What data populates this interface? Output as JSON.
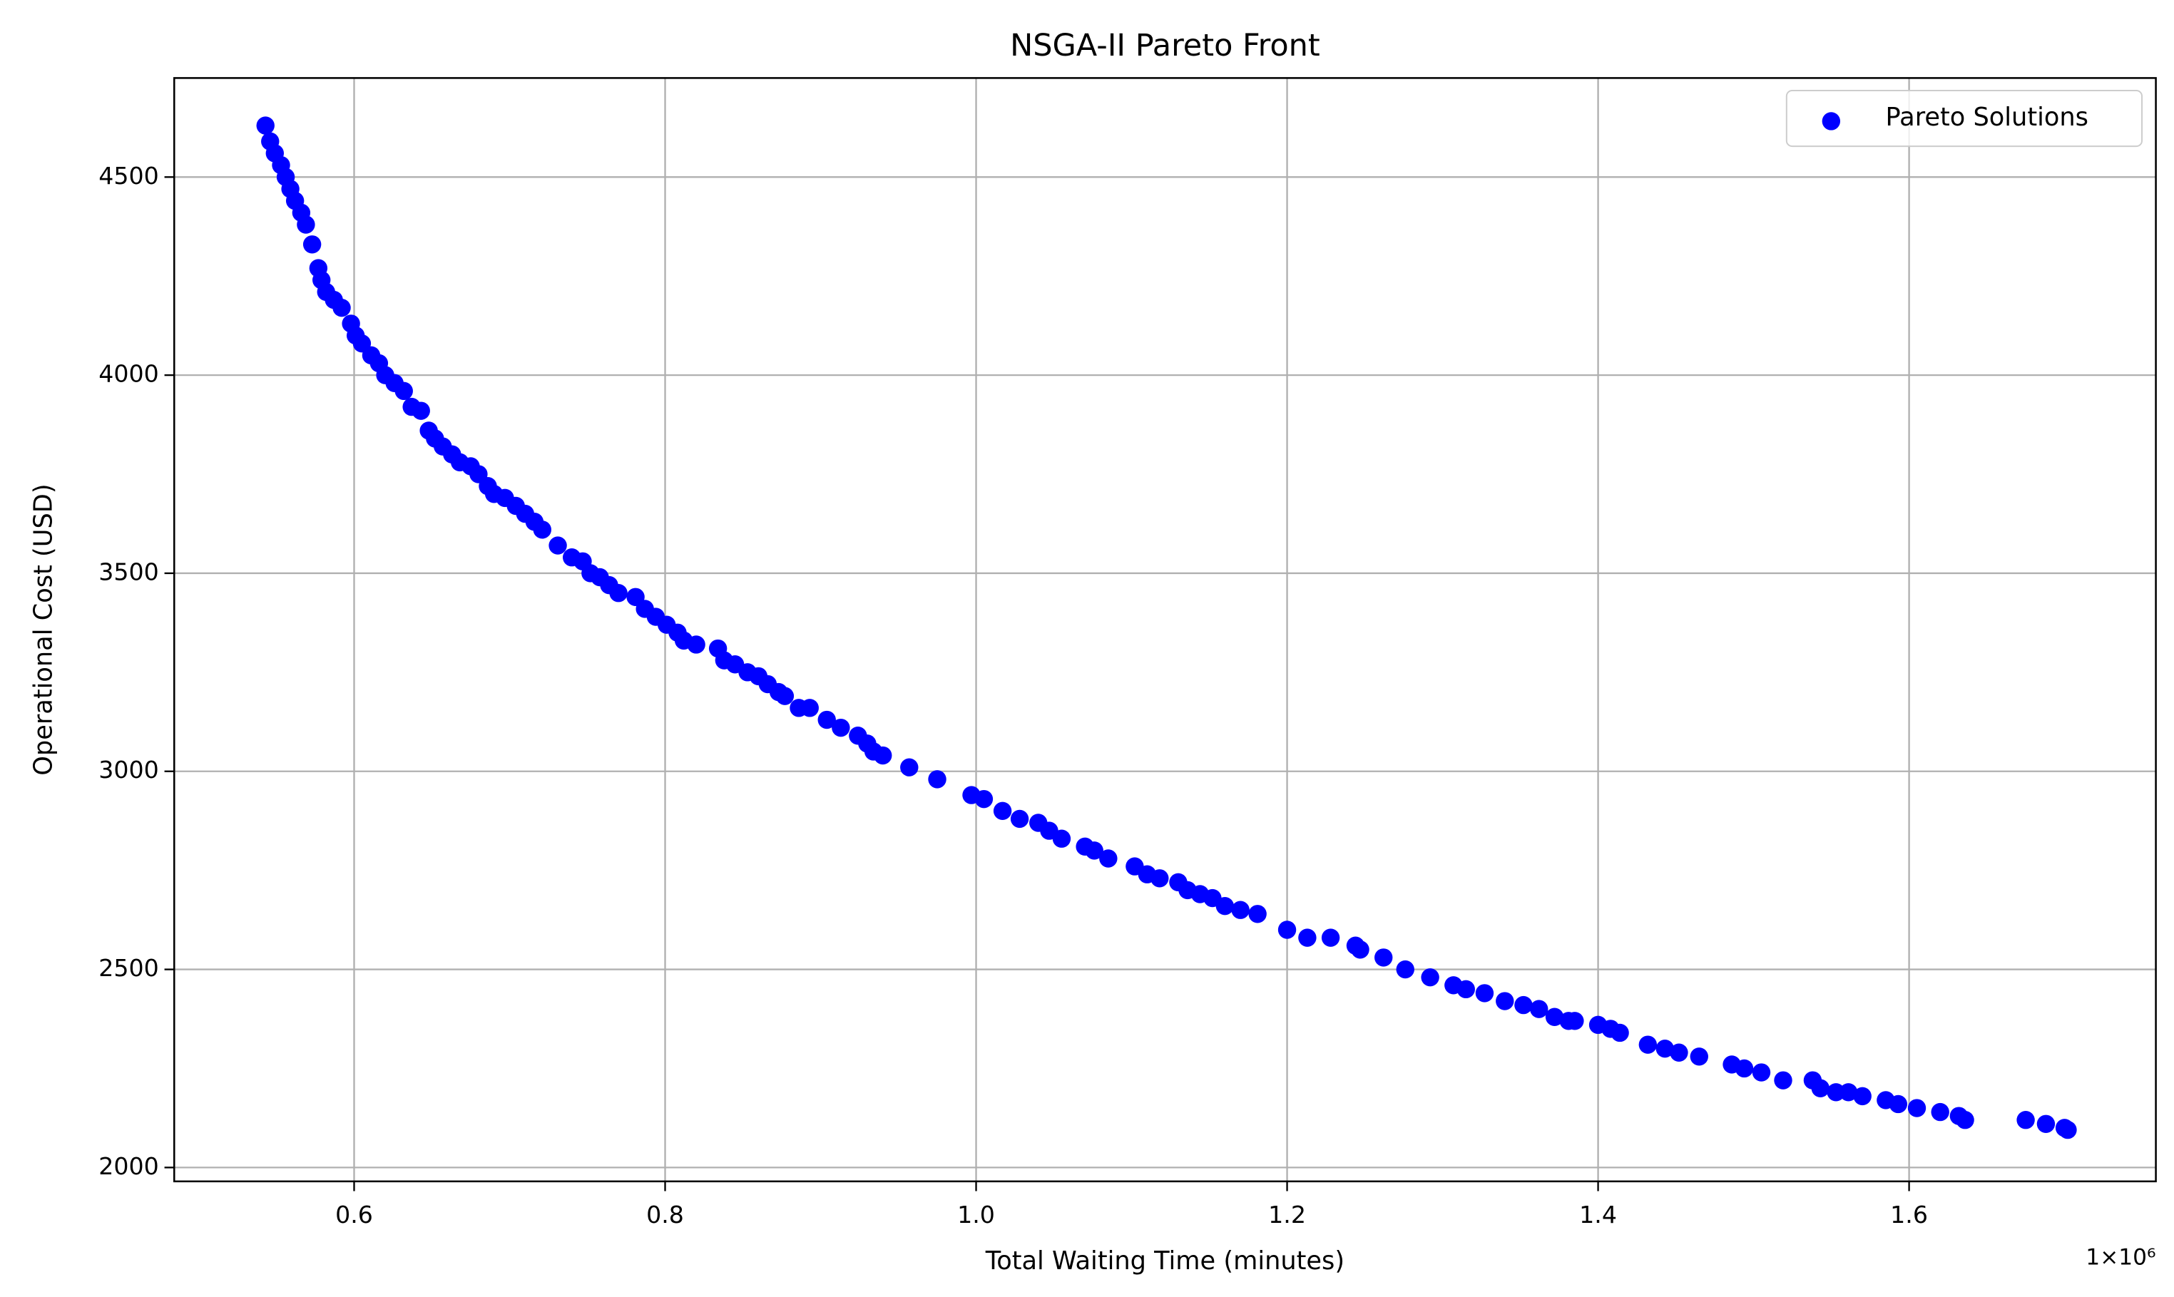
{
  "chart_data": {
    "type": "scatter",
    "title": "NSGA-II Pareto Front",
    "x_label": "Total Waiting Time (minutes)",
    "y_label": "Operational Cost (USD)",
    "x_offset_label": "1×10⁶",
    "xlim": [
      0.4843,
      1.7587
    ],
    "ylim": [
      1965,
      4750
    ],
    "xticks": [
      0.6,
      0.8,
      {
        "value": 1,
        "label": "1.0"
      },
      1.2,
      1.4,
      1.6
    ],
    "yticks": [
      2000,
      2500,
      3000,
      3500,
      4000,
      4500
    ],
    "grid": true,
    "legend": "upper right",
    "series": [
      {
        "name": "Pareto Solutions",
        "color": "#0000ff",
        "x": [
          0.543,
          0.546,
          0.549,
          0.553,
          0.556,
          0.559,
          0.562,
          0.566,
          0.569,
          0.573,
          0.577,
          0.579,
          0.582,
          0.587,
          0.592,
          0.598,
          0.601,
          0.605,
          0.611,
          0.616,
          0.62,
          0.626,
          0.632,
          0.637,
          0.643,
          0.648,
          0.652,
          0.657,
          0.663,
          0.668,
          0.675,
          0.68,
          0.686,
          0.69,
          0.697,
          0.704,
          0.71,
          0.716,
          0.721,
          0.731,
          0.74,
          0.747,
          0.752,
          0.758,
          0.764,
          0.77,
          0.781,
          0.787,
          0.794,
          0.801,
          0.808,
          0.812,
          0.82,
          0.834,
          0.838,
          0.845,
          0.853,
          0.86,
          0.866,
          0.873,
          0.877,
          0.886,
          0.893,
          0.904,
          0.913,
          0.924,
          0.93,
          0.934,
          0.94,
          0.957,
          0.975,
          0.997,
          1.005,
          1.017,
          1.028,
          1.04,
          1.047,
          1.055,
          1.07,
          1.076,
          1.085,
          1.102,
          1.11,
          1.118,
          1.13,
          1.136,
          1.144,
          1.152,
          1.16,
          1.17,
          1.181,
          1.2,
          1.213,
          1.228,
          1.244,
          1.247,
          1.262,
          1.276,
          1.292,
          1.307,
          1.315,
          1.327,
          1.34,
          1.352,
          1.362,
          1.372,
          1.381,
          1.385,
          1.4,
          1.408,
          1.414,
          1.432,
          1.443,
          1.452,
          1.465,
          1.486,
          1.494,
          1.505,
          1.519,
          1.538,
          1.543,
          1.553,
          1.561,
          1.57,
          1.585,
          1.593,
          1.605,
          1.62,
          1.632,
          1.636,
          1.675,
          1.688,
          1.7,
          1.702
        ],
        "values": [
          4630,
          4590,
          4560,
          4530,
          4500,
          4470,
          4440,
          4410,
          4380,
          4330,
          4270,
          4240,
          4210,
          4190,
          4170,
          4130,
          4100,
          4080,
          4050,
          4030,
          4000,
          3980,
          3960,
          3920,
          3910,
          3860,
          3840,
          3820,
          3800,
          3780,
          3770,
          3750,
          3720,
          3700,
          3690,
          3670,
          3650,
          3630,
          3610,
          3570,
          3540,
          3530,
          3500,
          3490,
          3470,
          3450,
          3440,
          3410,
          3390,
          3370,
          3350,
          3330,
          3320,
          3310,
          3280,
          3270,
          3250,
          3240,
          3220,
          3200,
          3190,
          3160,
          3160,
          3130,
          3110,
          3090,
          3070,
          3050,
          3040,
          3010,
          2980,
          2940,
          2930,
          2900,
          2880,
          2870,
          2850,
          2830,
          2810,
          2800,
          2780,
          2760,
          2740,
          2730,
          2720,
          2700,
          2690,
          2680,
          2660,
          2650,
          2640,
          2600,
          2580,
          2580,
          2560,
          2550,
          2530,
          2500,
          2480,
          2460,
          2450,
          2440,
          2420,
          2410,
          2400,
          2380,
          2370,
          2370,
          2360,
          2350,
          2340,
          2310,
          2300,
          2290,
          2280,
          2260,
          2250,
          2240,
          2220,
          2220,
          2200,
          2190,
          2190,
          2180,
          2170,
          2160,
          2150,
          2140,
          2130,
          2120,
          2120,
          2110,
          2100,
          2095
        ]
      }
    ]
  }
}
